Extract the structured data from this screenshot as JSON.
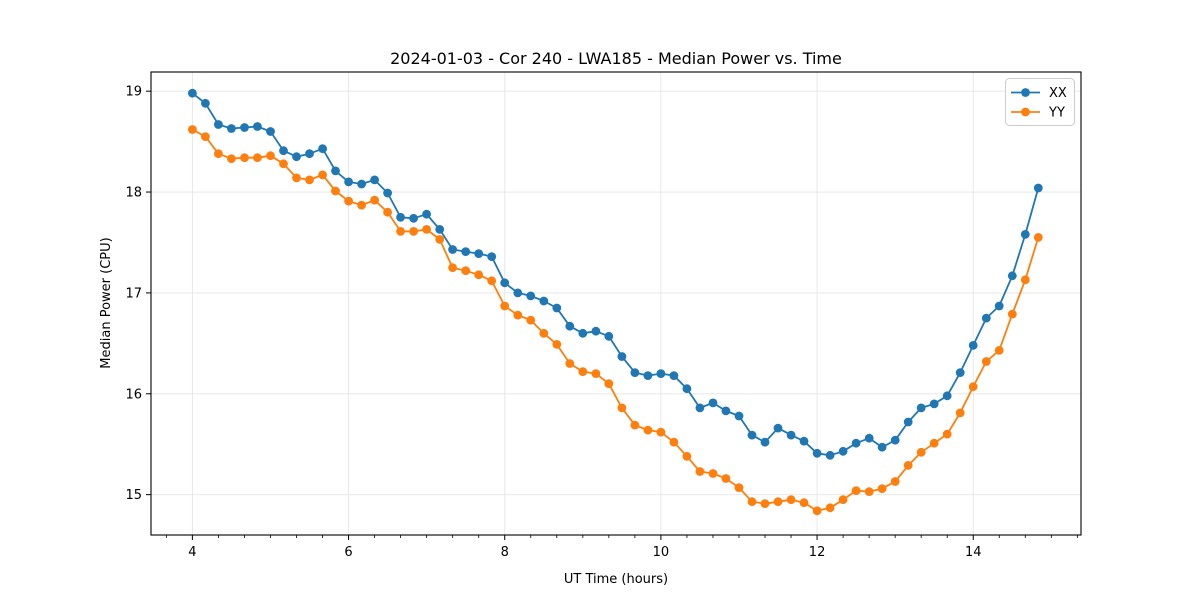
{
  "chart_data": {
    "type": "line",
    "title": "2024-01-03 - Cor 240 - LWA185 - Median Power vs. Time",
    "xlabel": "UT Time (hours)",
    "ylabel": "Median Power (CPU)",
    "x": [
      4,
      4.167,
      4.333,
      4.5,
      4.667,
      4.833,
      5,
      5.167,
      5.333,
      5.5,
      5.667,
      5.833,
      6,
      6.167,
      6.333,
      6.5,
      6.667,
      6.833,
      7,
      7.167,
      7.333,
      7.5,
      7.667,
      7.833,
      8,
      8.167,
      8.333,
      8.5,
      8.667,
      8.833,
      9,
      9.167,
      9.333,
      9.5,
      9.667,
      9.833,
      10,
      10.167,
      10.333,
      10.5,
      10.667,
      10.833,
      11,
      11.167,
      11.333,
      11.5,
      11.667,
      11.833,
      12,
      12.167,
      12.333,
      12.5,
      12.667,
      12.833,
      13,
      13.167,
      13.333,
      13.5,
      13.667,
      13.833,
      14,
      14.167,
      14.333,
      14.5,
      14.667,
      14.833
    ],
    "series": [
      {
        "name": "XX",
        "color": "#1f77b4",
        "marker": "circle",
        "values": [
          18.98,
          18.88,
          18.67,
          18.63,
          18.64,
          18.65,
          18.6,
          18.41,
          18.35,
          18.38,
          18.43,
          18.21,
          18.1,
          18.08,
          18.12,
          17.99,
          17.75,
          17.74,
          17.78,
          17.63,
          17.43,
          17.41,
          17.39,
          17.36,
          17.1,
          17.0,
          16.97,
          16.92,
          16.85,
          16.67,
          16.6,
          16.62,
          16.57,
          16.37,
          16.21,
          16.18,
          16.2,
          16.18,
          16.05,
          15.86,
          15.91,
          15.83,
          15.78,
          15.59,
          15.52,
          15.66,
          15.59,
          15.53,
          15.41,
          15.39,
          15.43,
          15.51,
          15.56,
          15.47,
          15.54,
          15.72,
          15.86,
          15.9,
          15.98,
          16.21,
          16.48,
          16.75,
          16.87,
          17.17,
          17.58,
          18.04
        ]
      },
      {
        "name": "YY",
        "color": "#ff7f0e",
        "marker": "circle",
        "values": [
          18.62,
          18.55,
          18.38,
          18.33,
          18.34,
          18.34,
          18.36,
          18.28,
          18.14,
          18.12,
          18.17,
          18.01,
          17.91,
          17.87,
          17.92,
          17.8,
          17.61,
          17.61,
          17.63,
          17.53,
          17.25,
          17.22,
          17.18,
          17.12,
          16.87,
          16.78,
          16.73,
          16.6,
          16.49,
          16.3,
          16.22,
          16.2,
          16.1,
          15.86,
          15.69,
          15.64,
          15.62,
          15.52,
          15.38,
          15.23,
          15.21,
          15.16,
          15.07,
          14.93,
          14.91,
          14.93,
          14.95,
          14.92,
          14.84,
          14.87,
          14.95,
          15.04,
          15.03,
          15.06,
          15.13,
          15.29,
          15.42,
          15.51,
          15.6,
          15.81,
          16.07,
          16.32,
          16.43,
          16.79,
          17.13,
          17.55
        ]
      }
    ],
    "xlim": [
      3.47,
      15.38
    ],
    "ylim": [
      14.6,
      19.19
    ],
    "xticks": [
      4,
      6,
      8,
      10,
      12,
      14
    ],
    "yticks": [
      15,
      16,
      17,
      18,
      19
    ],
    "x_minor_step": 0.33333,
    "grid": true,
    "grid_color": "#e5e5e5",
    "legend_position": "upper right",
    "background": "#ffffff"
  }
}
